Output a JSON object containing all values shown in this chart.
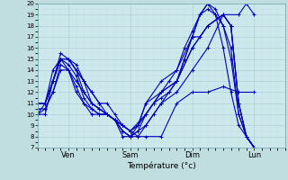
{
  "xlabel": "Température (°c)",
  "ylim": [
    7,
    20
  ],
  "yticks": [
    7,
    8,
    9,
    10,
    11,
    12,
    13,
    14,
    15,
    16,
    17,
    18,
    19,
    20
  ],
  "xtick_labels": [
    "Ven",
    "Sam",
    "Dim",
    "Lun"
  ],
  "xtick_positions": [
    24,
    72,
    120,
    168
  ],
  "xlim": [
    0,
    192
  ],
  "bg_color": "#c0dde0",
  "plot_bg_color": "#cce8ec",
  "line_color": "#0000bb",
  "marker": "+",
  "markersize": 3,
  "linewidth": 0.8,
  "grid_color_major": "#aacccc",
  "grid_color_minor": "#bbdddd",
  "series": [
    [
      0,
      11,
      6,
      11,
      12,
      13,
      18,
      15,
      24,
      15,
      30,
      14,
      36,
      13,
      42,
      12,
      48,
      11,
      54,
      10,
      60,
      9.5,
      66,
      8.5,
      72,
      8,
      84,
      8,
      96,
      8,
      108,
      11,
      120,
      12,
      132,
      12,
      144,
      12.5,
      156,
      12,
      168,
      12
    ],
    [
      0,
      11,
      6,
      11,
      12,
      13,
      18,
      15,
      24,
      15,
      30,
      14.5,
      36,
      13,
      42,
      11,
      48,
      10.5,
      54,
      10,
      60,
      9.5,
      66,
      8,
      72,
      8,
      84,
      9,
      96,
      11,
      108,
      12,
      120,
      14,
      132,
      16,
      144,
      19,
      156,
      19,
      162,
      20,
      168,
      19
    ],
    [
      0,
      11,
      6,
      11,
      12,
      13,
      18,
      15.5,
      24,
      15,
      30,
      14,
      36,
      12,
      42,
      11,
      48,
      10.5,
      54,
      10,
      60,
      9.5,
      66,
      8.5,
      72,
      8,
      78,
      8.5,
      84,
      10,
      90,
      11,
      96,
      11.5,
      102,
      12,
      108,
      13,
      114,
      15,
      120,
      17,
      126,
      19,
      132,
      20,
      138,
      19.5,
      144,
      18,
      150,
      16,
      156,
      10,
      162,
      8,
      168,
      7
    ],
    [
      0,
      10,
      6,
      10,
      12,
      13,
      18,
      15,
      24,
      14,
      30,
      13,
      36,
      12,
      42,
      11,
      48,
      10.5,
      54,
      10,
      60,
      9.5,
      66,
      9,
      72,
      8.5,
      78,
      9,
      84,
      10,
      90,
      11,
      96,
      12,
      102,
      13,
      108,
      14,
      114,
      16,
      120,
      17.5,
      126,
      19,
      132,
      19.5,
      138,
      19,
      144,
      18,
      150,
      15,
      156,
      10,
      162,
      8,
      168,
      7
    ],
    [
      0,
      10,
      6,
      10.5,
      12,
      12,
      18,
      14,
      24,
      14,
      30,
      12,
      36,
      11,
      42,
      10,
      48,
      10,
      54,
      10,
      60,
      9.5,
      66,
      9,
      72,
      8.5,
      84,
      10,
      96,
      12,
      108,
      13,
      120,
      16,
      132,
      18,
      144,
      19,
      150,
      18,
      156,
      11,
      162,
      8,
      168,
      7
    ],
    [
      0,
      10.5,
      6,
      10.5,
      12,
      12,
      18,
      14.5,
      24,
      14,
      30,
      12.5,
      36,
      11,
      42,
      10.5,
      48,
      10,
      54,
      10,
      60,
      9.5,
      66,
      9,
      72,
      8.5,
      78,
      9,
      84,
      11,
      96,
      13,
      108,
      14,
      120,
      17,
      126,
      17,
      132,
      18,
      144,
      19,
      150,
      18,
      156,
      11,
      162,
      8,
      168,
      7
    ],
    [
      0,
      10,
      6,
      11,
      12,
      13,
      18,
      15,
      24,
      14.5,
      30,
      13.5,
      36,
      11.5,
      42,
      10.5,
      48,
      10,
      54,
      10,
      60,
      9.5,
      66,
      8.5,
      72,
      8,
      78,
      9,
      84,
      11,
      96,
      12,
      108,
      13,
      120,
      16,
      132,
      18,
      144,
      19,
      150,
      18,
      156,
      11,
      162,
      8,
      168,
      7
    ],
    [
      0,
      11,
      6,
      11,
      12,
      14,
      18,
      15,
      24,
      15,
      30,
      14,
      36,
      13,
      42,
      12,
      48,
      11,
      54,
      11,
      60,
      10,
      66,
      9,
      72,
      8.5,
      78,
      8,
      84,
      9,
      90,
      10,
      96,
      11,
      102,
      12,
      108,
      13,
      114,
      15,
      120,
      17,
      126,
      19,
      132,
      20,
      138,
      19,
      144,
      16,
      150,
      12,
      156,
      9,
      162,
      8,
      168,
      7
    ]
  ]
}
